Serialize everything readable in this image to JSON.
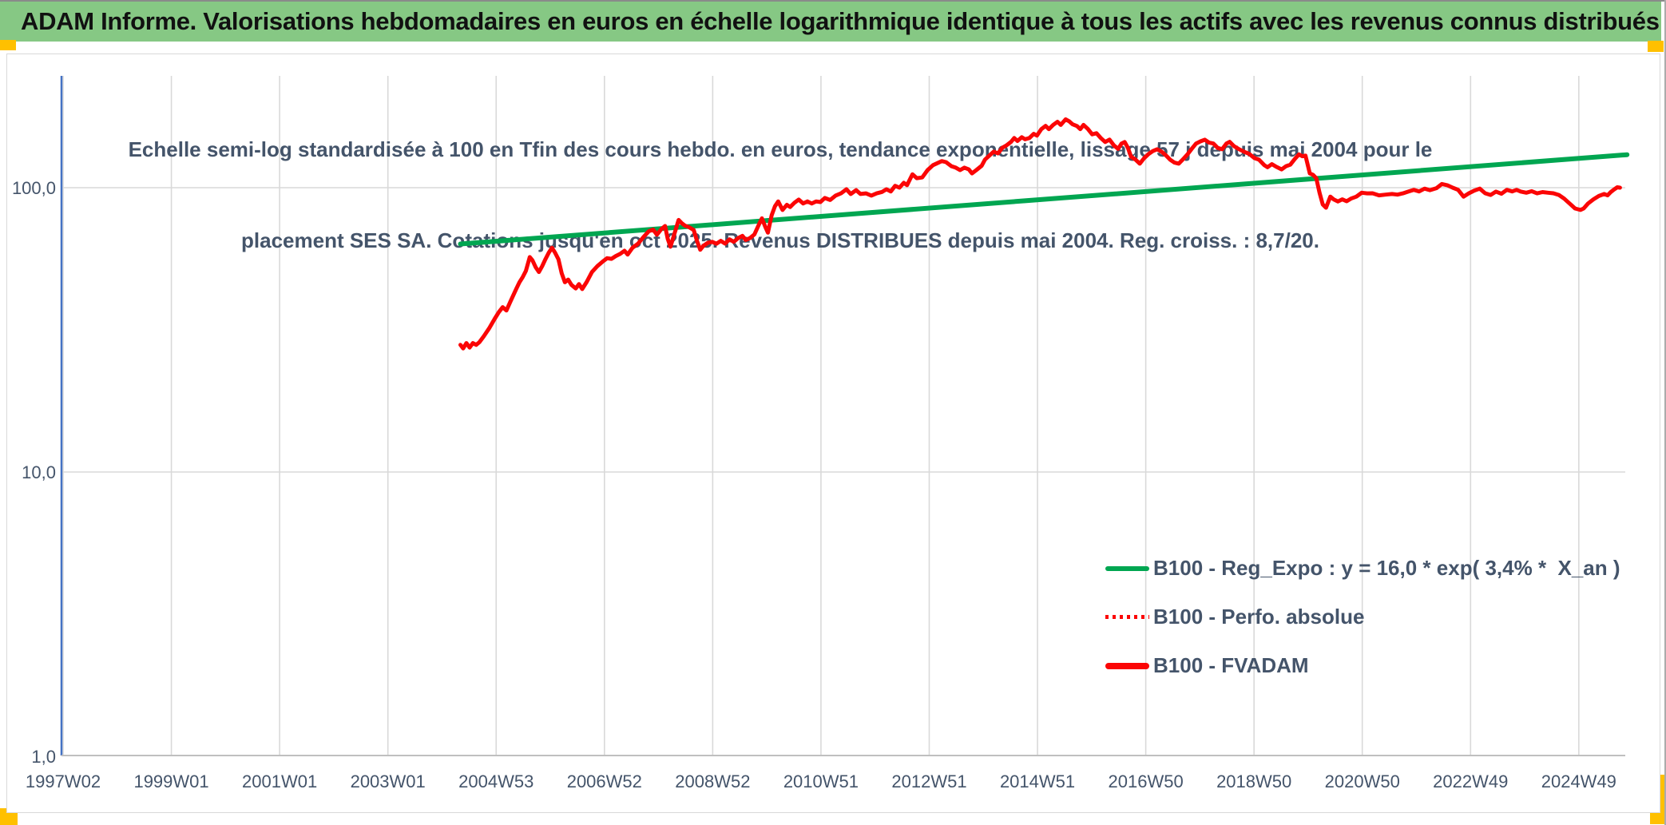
{
  "window": {
    "title": "ADAM Informe. Valorisations hebdomadaires en euros en échelle logarithmique identique à tous les actifs avec les revenus connus distribués"
  },
  "colors": {
    "title_bar_green": "#86c884",
    "accent_yellow": "#ffc000",
    "chart_text": "#44546a",
    "gridline": "#d9d9d9",
    "y_axis_blue": "#4472c4",
    "x_axis_gray": "#bfbfbf",
    "series_red": "#fb0505",
    "series_green": "#00a651"
  },
  "chart_data": {
    "type": "line",
    "y_scale": "log",
    "grid": true,
    "legend_position": "inside-bottom-right",
    "title_line1": "Echelle semi-log standardisée à 100 en Tfin des cours hebdo. en euros, tendance exponentielle, lissage 57 j depuis mai 2004 pour le",
    "title_line2": "placement SES SA. Cotations jusqu'en oct 2025. Revenus DISTRIBUES depuis mai 2004. Reg. croiss. : 8,7/20.",
    "ylim": [
      1,
      250
    ],
    "xlim_years": [
      1997.0,
      2026.0
    ],
    "y_ticks": [
      {
        "label": "100,0",
        "value": 100
      },
      {
        "label": "10,0",
        "value": 10
      },
      {
        "label": "1,0",
        "value": 1
      }
    ],
    "x_ticks": [
      {
        "label": "1997W02",
        "year": 1997.03
      },
      {
        "label": "1999W01",
        "year": 1999.03
      },
      {
        "label": "2001W01",
        "year": 2001.03
      },
      {
        "label": "2003W01",
        "year": 2003.03
      },
      {
        "label": "2004W53",
        "year": 2005.03
      },
      {
        "label": "2006W52",
        "year": 2007.03
      },
      {
        "label": "2008W52",
        "year": 2009.03
      },
      {
        "label": "2010W51",
        "year": 2011.03
      },
      {
        "label": "2012W51",
        "year": 2013.03
      },
      {
        "label": "2014W51",
        "year": 2015.03
      },
      {
        "label": "2016W50",
        "year": 2017.03
      },
      {
        "label": "2018W50",
        "year": 2019.03
      },
      {
        "label": "2020W50",
        "year": 2021.03
      },
      {
        "label": "2022W49",
        "year": 2023.03
      },
      {
        "label": "2024W49",
        "year": 2025.03
      }
    ],
    "series": [
      {
        "name": "B100 - Reg_Expo : y = 16,0 * exp( 3,4% *  X_an )",
        "color": "#00a651",
        "style": "solid",
        "width": 6,
        "points": [
          [
            2004.37,
            63.4
          ],
          [
            2025.92,
            130.6
          ]
        ]
      },
      {
        "name": "B100 - Perfo. absolue",
        "color": "#fb0505",
        "style": "dotted",
        "width": 4,
        "points": "same-as-B100-FVADAM"
      },
      {
        "name": "B100 - FVADAM",
        "color": "#fb0505",
        "style": "solid",
        "width": 5,
        "points": [
          [
            2004.37,
            28.0
          ],
          [
            2004.42,
            27.2
          ],
          [
            2004.48,
            28.4
          ],
          [
            2004.54,
            27.4
          ],
          [
            2004.6,
            28.4
          ],
          [
            2004.66,
            28.0
          ],
          [
            2004.72,
            28.6
          ],
          [
            2004.8,
            30.0
          ],
          [
            2004.9,
            32.0
          ],
          [
            2005.0,
            34.5
          ],
          [
            2005.08,
            36.5
          ],
          [
            2005.15,
            38.0
          ],
          [
            2005.22,
            37.0
          ],
          [
            2005.3,
            40.0
          ],
          [
            2005.4,
            44.0
          ],
          [
            2005.46,
            46.5
          ],
          [
            2005.52,
            48.5
          ],
          [
            2005.58,
            51.0
          ],
          [
            2005.65,
            57.0
          ],
          [
            2005.7,
            55.5
          ],
          [
            2005.76,
            52.5
          ],
          [
            2005.82,
            50.5
          ],
          [
            2005.88,
            53.0
          ],
          [
            2005.94,
            56.0
          ],
          [
            2006.0,
            59.0
          ],
          [
            2006.06,
            61.5
          ],
          [
            2006.12,
            59.0
          ],
          [
            2006.18,
            56.0
          ],
          [
            2006.24,
            50.0
          ],
          [
            2006.3,
            46.5
          ],
          [
            2006.36,
            47.5
          ],
          [
            2006.42,
            45.5
          ],
          [
            2006.5,
            44.2
          ],
          [
            2006.56,
            45.8
          ],
          [
            2006.62,
            44.0
          ],
          [
            2006.7,
            46.5
          ],
          [
            2006.8,
            50.5
          ],
          [
            2006.9,
            53.0
          ],
          [
            2007.0,
            55.0
          ],
          [
            2007.08,
            56.5
          ],
          [
            2007.16,
            56.2
          ],
          [
            2007.24,
            57.5
          ],
          [
            2007.32,
            58.5
          ],
          [
            2007.4,
            60.0
          ],
          [
            2007.46,
            58.2
          ],
          [
            2007.55,
            61.5
          ],
          [
            2007.65,
            63.5
          ],
          [
            2007.75,
            67.0
          ],
          [
            2007.85,
            70.3
          ],
          [
            2007.93,
            71.2
          ],
          [
            2008.0,
            68.3
          ],
          [
            2008.08,
            71.5
          ],
          [
            2008.15,
            73.3
          ],
          [
            2008.2,
            66.0
          ],
          [
            2008.25,
            62.0
          ],
          [
            2008.32,
            68.5
          ],
          [
            2008.4,
            77.0
          ],
          [
            2008.46,
            75.0
          ],
          [
            2008.52,
            73.5
          ],
          [
            2008.6,
            72.5
          ],
          [
            2008.68,
            71.0
          ],
          [
            2008.74,
            65.0
          ],
          [
            2008.8,
            60.5
          ],
          [
            2008.86,
            62.5
          ],
          [
            2008.94,
            64.0
          ],
          [
            2009.02,
            64.5
          ],
          [
            2009.1,
            63.5
          ],
          [
            2009.18,
            65.0
          ],
          [
            2009.26,
            63.6
          ],
          [
            2009.34,
            65.8
          ],
          [
            2009.42,
            64.5
          ],
          [
            2009.5,
            66.5
          ],
          [
            2009.58,
            67.7
          ],
          [
            2009.64,
            65.5
          ],
          [
            2009.72,
            66.5
          ],
          [
            2009.8,
            68.5
          ],
          [
            2009.88,
            74.0
          ],
          [
            2009.94,
            78.0
          ],
          [
            2010.0,
            73.0
          ],
          [
            2010.05,
            69.5
          ],
          [
            2010.12,
            80.0
          ],
          [
            2010.18,
            86.0
          ],
          [
            2010.24,
            89.5
          ],
          [
            2010.32,
            83.5
          ],
          [
            2010.4,
            87.0
          ],
          [
            2010.46,
            85.5
          ],
          [
            2010.54,
            88.5
          ],
          [
            2010.62,
            90.8
          ],
          [
            2010.7,
            88.0
          ],
          [
            2010.78,
            89.5
          ],
          [
            2010.86,
            88.0
          ],
          [
            2010.94,
            89.5
          ],
          [
            2011.02,
            89.0
          ],
          [
            2011.1,
            92.0
          ],
          [
            2011.2,
            90.5
          ],
          [
            2011.3,
            93.8
          ],
          [
            2011.4,
            95.5
          ],
          [
            2011.5,
            98.7
          ],
          [
            2011.58,
            95.0
          ],
          [
            2011.68,
            98.0
          ],
          [
            2011.76,
            95.0
          ],
          [
            2011.86,
            95.5
          ],
          [
            2011.96,
            93.8
          ],
          [
            2012.06,
            95.5
          ],
          [
            2012.16,
            96.6
          ],
          [
            2012.24,
            98.7
          ],
          [
            2012.32,
            97.0
          ],
          [
            2012.4,
            101.5
          ],
          [
            2012.48,
            100.0
          ],
          [
            2012.56,
            104.0
          ],
          [
            2012.62,
            102.0
          ],
          [
            2012.72,
            111.5
          ],
          [
            2012.8,
            108.0
          ],
          [
            2012.9,
            108.6
          ],
          [
            2013.0,
            115.3
          ],
          [
            2013.1,
            120.0
          ],
          [
            2013.18,
            122.0
          ],
          [
            2013.26,
            124.0
          ],
          [
            2013.34,
            123.0
          ],
          [
            2013.44,
            119.0
          ],
          [
            2013.52,
            117.6
          ],
          [
            2013.6,
            115.3
          ],
          [
            2013.68,
            117.6
          ],
          [
            2013.76,
            116.0
          ],
          [
            2013.82,
            112.3
          ],
          [
            2013.9,
            115.3
          ],
          [
            2014.0,
            119.5
          ],
          [
            2014.06,
            125.6
          ],
          [
            2014.14,
            129.6
          ],
          [
            2014.22,
            133.9
          ],
          [
            2014.3,
            132.0
          ],
          [
            2014.38,
            138.2
          ],
          [
            2014.46,
            141.0
          ],
          [
            2014.54,
            144.8
          ],
          [
            2014.6,
            149.5
          ],
          [
            2014.66,
            146.0
          ],
          [
            2014.74,
            150.5
          ],
          [
            2014.8,
            148.0
          ],
          [
            2014.88,
            149.5
          ],
          [
            2014.96,
            154.6
          ],
          [
            2015.02,
            152.5
          ],
          [
            2015.1,
            160.7
          ],
          [
            2015.18,
            165.0
          ],
          [
            2015.24,
            160.7
          ],
          [
            2015.32,
            166.3
          ],
          [
            2015.4,
            170.5
          ],
          [
            2015.46,
            166.3
          ],
          [
            2015.55,
            174.0
          ],
          [
            2015.62,
            171.0
          ],
          [
            2015.68,
            167.0
          ],
          [
            2015.76,
            164.8
          ],
          [
            2015.82,
            160.7
          ],
          [
            2015.88,
            166.3
          ],
          [
            2015.96,
            161.0
          ],
          [
            2016.04,
            154.0
          ],
          [
            2016.12,
            155.4
          ],
          [
            2016.2,
            149.5
          ],
          [
            2016.28,
            144.8
          ],
          [
            2016.36,
            147.6
          ],
          [
            2016.44,
            141.0
          ],
          [
            2016.52,
            136.9
          ],
          [
            2016.58,
            142.8
          ],
          [
            2016.64,
            144.8
          ],
          [
            2016.7,
            138.2
          ],
          [
            2016.76,
            128.4
          ],
          [
            2016.84,
            125.6
          ],
          [
            2016.92,
            121.5
          ],
          [
            2017.0,
            127.0
          ],
          [
            2017.08,
            131.3
          ],
          [
            2017.16,
            134.5
          ],
          [
            2017.24,
            136.5
          ],
          [
            2017.32,
            134.0
          ],
          [
            2017.4,
            130.0
          ],
          [
            2017.48,
            125.5
          ],
          [
            2017.56,
            122.5
          ],
          [
            2017.64,
            121.5
          ],
          [
            2017.72,
            126.0
          ],
          [
            2017.8,
            131.0
          ],
          [
            2017.88,
            137.0
          ],
          [
            2017.96,
            143.0
          ],
          [
            2018.04,
            145.5
          ],
          [
            2018.12,
            147.5
          ],
          [
            2018.2,
            144.0
          ],
          [
            2018.28,
            143.0
          ],
          [
            2018.36,
            138.0
          ],
          [
            2018.44,
            136.5
          ],
          [
            2018.52,
            143.0
          ],
          [
            2018.58,
            145.0
          ],
          [
            2018.66,
            140.0
          ],
          [
            2018.74,
            137.0
          ],
          [
            2018.84,
            134.0
          ],
          [
            2018.94,
            131.5
          ],
          [
            2019.04,
            127.0
          ],
          [
            2019.12,
            125.5
          ],
          [
            2019.22,
            120.0
          ],
          [
            2019.28,
            118.0
          ],
          [
            2019.36,
            121.0
          ],
          [
            2019.44,
            118.5
          ],
          [
            2019.54,
            116.0
          ],
          [
            2019.62,
            119.0
          ],
          [
            2019.7,
            120.5
          ],
          [
            2019.78,
            126.0
          ],
          [
            2019.86,
            131.0
          ],
          [
            2019.92,
            129.0
          ],
          [
            2019.98,
            129.6
          ],
          [
            2020.06,
            112.3
          ],
          [
            2020.12,
            111.0
          ],
          [
            2020.18,
            108.0
          ],
          [
            2020.24,
            96.0
          ],
          [
            2020.3,
            87.3
          ],
          [
            2020.36,
            85.0
          ],
          [
            2020.44,
            93.0
          ],
          [
            2020.5,
            91.0
          ],
          [
            2020.58,
            89.5
          ],
          [
            2020.66,
            91.0
          ],
          [
            2020.74,
            89.6
          ],
          [
            2020.82,
            91.5
          ],
          [
            2020.92,
            93.0
          ],
          [
            2021.02,
            96.0
          ],
          [
            2021.12,
            95.5
          ],
          [
            2021.22,
            95.6
          ],
          [
            2021.34,
            94.0
          ],
          [
            2021.46,
            94.5
          ],
          [
            2021.58,
            95.0
          ],
          [
            2021.68,
            94.5
          ],
          [
            2021.78,
            95.5
          ],
          [
            2021.88,
            96.9
          ],
          [
            2021.98,
            98.3
          ],
          [
            2022.08,
            97.0
          ],
          [
            2022.18,
            99.2
          ],
          [
            2022.28,
            98.0
          ],
          [
            2022.4,
            99.6
          ],
          [
            2022.5,
            103.0
          ],
          [
            2022.6,
            102.0
          ],
          [
            2022.7,
            100.0
          ],
          [
            2022.8,
            98.3
          ],
          [
            2022.9,
            93.0
          ],
          [
            2023.0,
            95.6
          ],
          [
            2023.1,
            97.7
          ],
          [
            2023.2,
            99.2
          ],
          [
            2023.3,
            95.6
          ],
          [
            2023.4,
            94.3
          ],
          [
            2023.5,
            96.9
          ],
          [
            2023.6,
            95.2
          ],
          [
            2023.7,
            98.3
          ],
          [
            2023.8,
            97.0
          ],
          [
            2023.88,
            98.3
          ],
          [
            2023.96,
            96.9
          ],
          [
            2024.06,
            96.0
          ],
          [
            2024.16,
            97.2
          ],
          [
            2024.26,
            95.5
          ],
          [
            2024.36,
            96.5
          ],
          [
            2024.46,
            96.0
          ],
          [
            2024.56,
            95.6
          ],
          [
            2024.66,
            94.3
          ],
          [
            2024.76,
            91.5
          ],
          [
            2024.86,
            88.0
          ],
          [
            2024.96,
            84.5
          ],
          [
            2025.06,
            83.5
          ],
          [
            2025.12,
            84.5
          ],
          [
            2025.2,
            88.0
          ],
          [
            2025.3,
            91.0
          ],
          [
            2025.4,
            93.5
          ],
          [
            2025.5,
            95.0
          ],
          [
            2025.56,
            94.0
          ],
          [
            2025.62,
            96.5
          ],
          [
            2025.68,
            98.5
          ],
          [
            2025.74,
            100.3
          ],
          [
            2025.79,
            100.0
          ]
        ]
      }
    ]
  }
}
